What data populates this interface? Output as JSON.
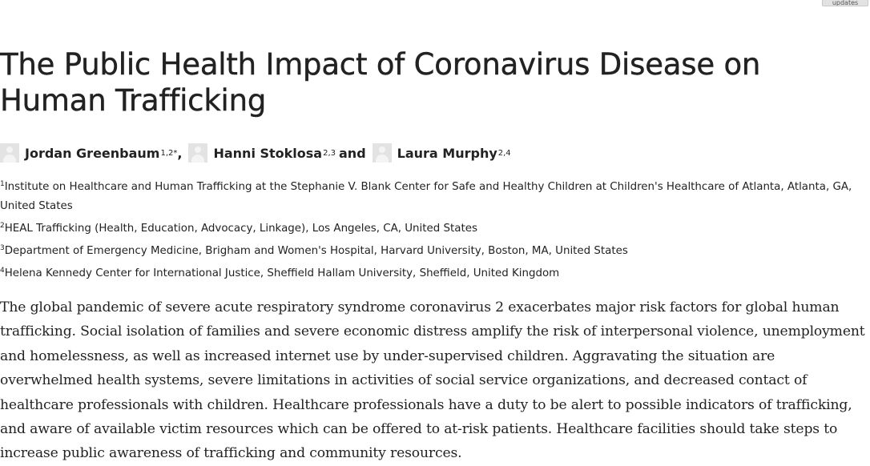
{
  "header": {
    "updates_label": "updates"
  },
  "article": {
    "title": "The Public Health Impact of Coronavirus Disease on Human Trafficking",
    "authors": [
      {
        "name": "Jordan Greenbaum",
        "affiliation_marks": "1,2*"
      },
      {
        "name": "Hanni Stoklosa",
        "affiliation_marks": "2,3"
      },
      {
        "name": "Laura Murphy",
        "affiliation_marks": "2,4"
      }
    ],
    "author_separators": [
      ",",
      "and"
    ],
    "affiliations": [
      {
        "mark": "1",
        "text": "Institute on Healthcare and Human Trafficking at the Stephanie V. Blank Center for Safe and Healthy Children at Children's Healthcare of Atlanta, Atlanta, GA, United States"
      },
      {
        "mark": "2",
        "text": "HEAL Trafficking (Health, Education, Advocacy, Linkage), Los Angeles, CA, United States"
      },
      {
        "mark": "3",
        "text": "Department of Emergency Medicine, Brigham and Women's Hospital, Harvard University, Boston, MA, United States"
      },
      {
        "mark": "4",
        "text": "Helena Kennedy Center for International Justice, Sheffield Hallam University, Sheffield, United Kingdom"
      }
    ],
    "abstract": "The global pandemic of severe acute respiratory syndrome coronavirus 2 exacerbates major risk factors for global human trafficking. Social isolation of families and severe economic distress amplify the risk of interpersonal violence, unemployment and homelessness, as well as increased internet use by under-supervised children. Aggravating the situation are overwhelmed health systems, severe limitations in activities of social service organizations, and decreased contact of healthcare professionals with children. Healthcare professionals have a duty to be alert to possible indicators of trafficking, and aware of available victim resources which can be offered to at-risk patients. Healthcare facilities should take steps to increase public awareness of trafficking and community resources."
  },
  "colors": {
    "text": "#222222",
    "avatar_bg": "#e3e3e3",
    "avatar_fg": "#f4f4f4",
    "button_bg": "#e2e2e2"
  },
  "icons": {
    "author_avatar": "user-silhouette-icon"
  }
}
